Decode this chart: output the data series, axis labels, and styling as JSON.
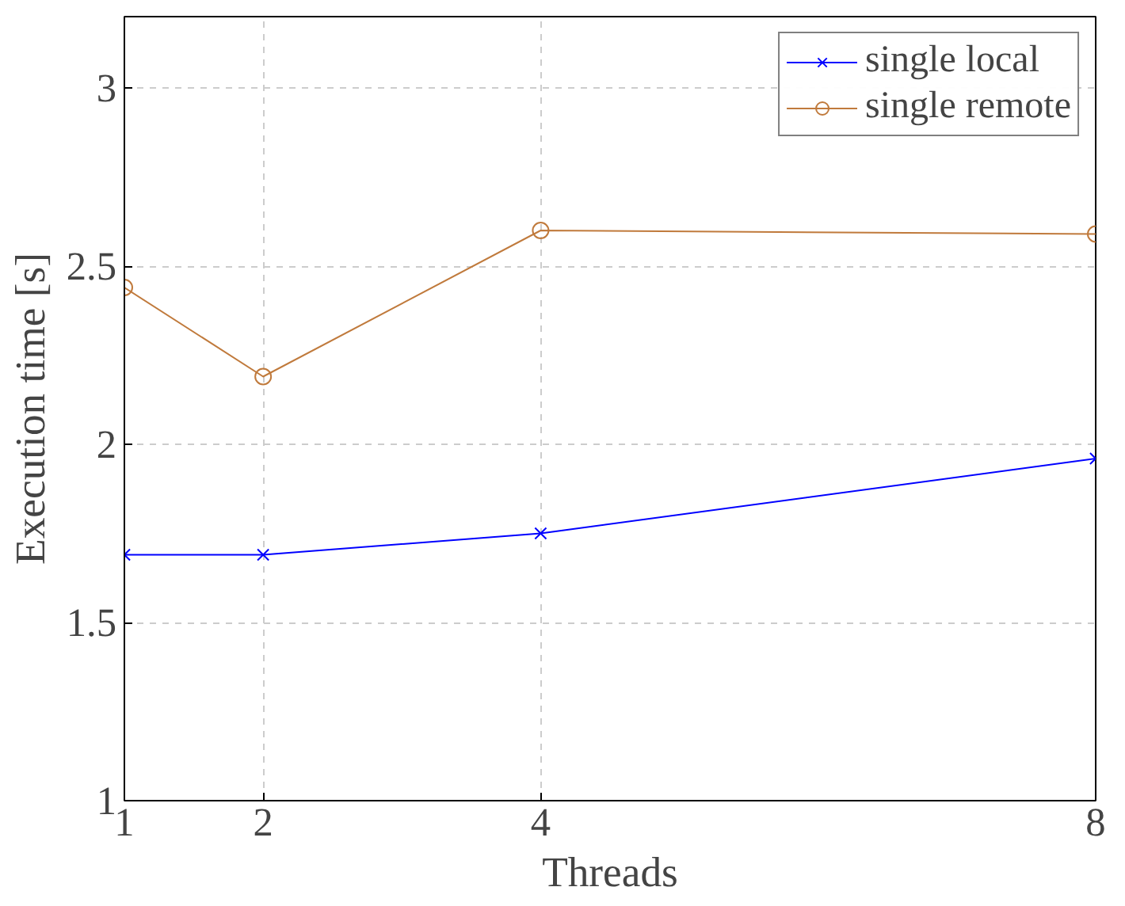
{
  "chart_data": {
    "type": "line",
    "xlabel": "Threads",
    "ylabel": "Execution time [s]",
    "x": [
      1,
      2,
      4,
      8
    ],
    "series": [
      {
        "name": "single local",
        "color": "#0000ff",
        "marker": "cross",
        "values": [
          1.69,
          1.69,
          1.75,
          1.96
        ]
      },
      {
        "name": "single remote",
        "color": "#c07a3c",
        "marker": "circle",
        "values": [
          2.44,
          2.19,
          2.6,
          2.59
        ]
      }
    ],
    "xlim": [
      1,
      8
    ],
    "ylim": [
      1,
      3.2
    ],
    "xticks": [
      1,
      2,
      4,
      8
    ],
    "yticks": [
      1,
      1.5,
      2,
      2.5,
      3
    ],
    "grid": true,
    "legend": "top right",
    "line_style": "solid"
  }
}
